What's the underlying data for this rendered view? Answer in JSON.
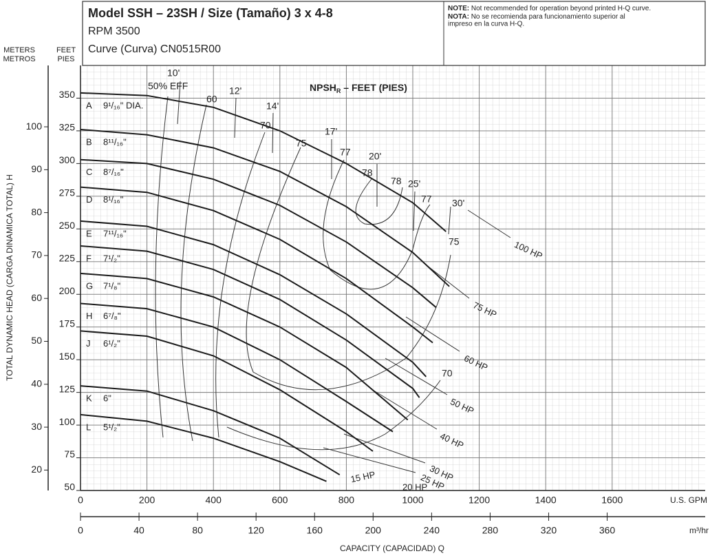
{
  "chart_data": {
    "type": "line",
    "title": "Model SSH – 23SH / Size (Tamaño) 3 x 4-8",
    "rpm": "RPM 3500",
    "curve": "Curve (Curva) CN0515R00",
    "note": {
      "label": "NOTE:",
      "text": "Not recommended for operation beyond printed H-Q curve."
    },
    "nota": {
      "label": "NOTA:",
      "text": "No se recomienda para funcionamiento superior al",
      "text2": "impreso en la curva H-Q."
    },
    "y_label": "TOTAL DYNAMIC HEAD (CARGA DINAMICA TOTAL) H",
    "y_unit": [
      "FEET",
      "PIES"
    ],
    "y2_unit": [
      "METERS",
      "METROS"
    ],
    "x_label": "CAPACITY (CAPACIDAD) Q",
    "x_unit": "U.S. GPM",
    "x2_unit": "m³/hr",
    "npsh_title": {
      "main": "NPSH",
      "sub": "R",
      "rest": " – FEET (PIES)"
    },
    "xlim": [
      0,
      1880
    ],
    "xticks": [
      0,
      200,
      400,
      600,
      800,
      1000,
      1200,
      1400,
      1600
    ],
    "x2lim": [
      0,
      427
    ],
    "x2ticks": [
      0,
      40,
      80,
      120,
      160,
      200,
      240,
      280,
      320,
      360
    ],
    "ylim": [
      50,
      375
    ],
    "yticks": [
      50,
      75,
      100,
      125,
      150,
      175,
      200,
      225,
      250,
      275,
      300,
      325,
      350
    ],
    "y2lim": [
      15.24,
      114.3
    ],
    "y2ticks": [
      20,
      30,
      40,
      50,
      60,
      70,
      80,
      90,
      100
    ],
    "grid": true,
    "series": [
      {
        "name": "A",
        "label": "9¹/₁₆\" DIA.",
        "color": "#1a1a1a",
        "x": [
          0,
          200,
          400,
          600,
          800,
          1000,
          1100
        ],
        "values": [
          354,
          352,
          343,
          325,
          300,
          270,
          248
        ]
      },
      {
        "name": "B",
        "label": "8¹¹/₁₆\"",
        "color": "#1a1a1a",
        "x": [
          0,
          200,
          400,
          600,
          800,
          1000,
          1110
        ],
        "values": [
          326,
          322,
          312,
          294,
          267,
          232,
          206
        ]
      },
      {
        "name": "C",
        "label": "8⁷/₁₆\"",
        "color": "#1a1a1a",
        "x": [
          0,
          200,
          400,
          600,
          800,
          1000,
          1070
        ],
        "values": [
          303,
          300,
          288,
          268,
          240,
          205,
          190
        ]
      },
      {
        "name": "D",
        "label": "8¹/₁₆\"",
        "color": "#1a1a1a",
        "x": [
          0,
          200,
          400,
          600,
          800,
          1000,
          1060
        ],
        "values": [
          282,
          278,
          264,
          242,
          212,
          175,
          163
        ]
      },
      {
        "name": "E",
        "label": "7¹¹/₁₆\"",
        "color": "#1a1a1a",
        "x": [
          0,
          200,
          400,
          600,
          800,
          1000,
          1040
        ],
        "values": [
          256,
          252,
          238,
          215,
          185,
          148,
          137
        ]
      },
      {
        "name": "F",
        "label": "7¹/₂\"",
        "color": "#1a1a1a",
        "x": [
          0,
          200,
          400,
          600,
          800,
          1000,
          1020
        ],
        "values": [
          237,
          233,
          219,
          196,
          165,
          128,
          121
        ]
      },
      {
        "name": "G",
        "label": "7¹/₈\"",
        "color": "#1a1a1a",
        "x": [
          0,
          200,
          400,
          600,
          800,
          985
        ],
        "values": [
          216,
          212,
          198,
          175,
          144,
          104
        ]
      },
      {
        "name": "H",
        "label": "6⁷/₈\"",
        "color": "#1a1a1a",
        "x": [
          0,
          200,
          400,
          600,
          800,
          940
        ],
        "values": [
          193,
          189,
          175,
          150,
          118,
          95
        ]
      },
      {
        "name": "J",
        "label": "6¹/₂\"",
        "color": "#1a1a1a",
        "x": [
          0,
          200,
          400,
          600,
          800,
          880
        ],
        "values": [
          172,
          168,
          153,
          127,
          95,
          80
        ]
      },
      {
        "name": "K",
        "label": "6\"",
        "color": "#1a1a1a",
        "x": [
          0,
          200,
          400,
          600,
          780
        ],
        "values": [
          130,
          126,
          111,
          90,
          62
        ]
      },
      {
        "name": "L",
        "label": "5¹/₂\"",
        "color": "#1a1a1a",
        "x": [
          0,
          200,
          400,
          600,
          740
        ],
        "values": [
          108,
          103,
          90,
          72,
          57
        ]
      }
    ],
    "hp_labels": [
      "100 HP",
      "75 HP",
      "60 HP",
      "50 HP",
      "40 HP",
      "30 HP",
      "25 HP",
      "20 HP",
      "15 HP"
    ],
    "eff_labels": [
      "50% EFF",
      "60",
      "70",
      "75",
      "77",
      "78",
      "78",
      "77",
      "75",
      "70"
    ],
    "npsh_labels": [
      "10'",
      "12'",
      "14'",
      "17'",
      "20'",
      "25'",
      "30'"
    ]
  }
}
